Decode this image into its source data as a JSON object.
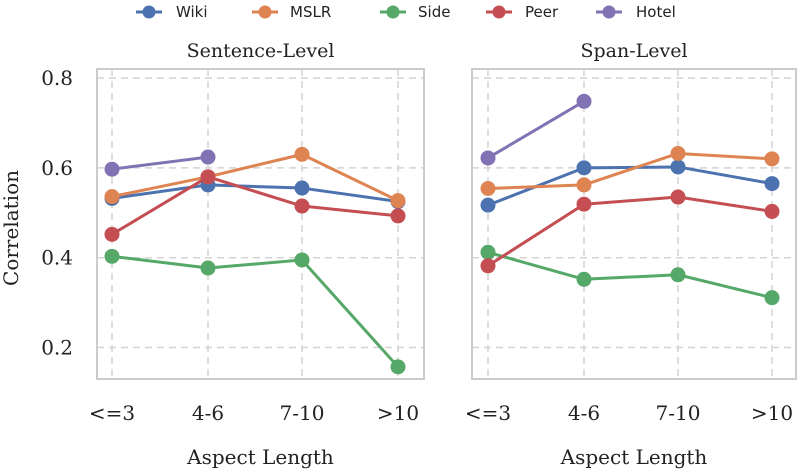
{
  "chart_data": {
    "type": "line",
    "legend": {
      "placement": "top-center",
      "entries": [
        {
          "name": "Wiki",
          "color": "#4c72b0"
        },
        {
          "name": "MSLR",
          "color": "#dd8452"
        },
        {
          "name": "Side",
          "color": "#55a868"
        },
        {
          "name": "Peer",
          "color": "#c44e52"
        },
        {
          "name": "Hotel",
          "color": "#8172b3"
        }
      ]
    },
    "categories": [
      "<=3",
      "4-6",
      "7-10",
      ">10"
    ],
    "xlabel": "Aspect Length",
    "ylabel": "Correlation",
    "ylim": [
      0.13,
      0.82
    ],
    "yticks": [
      "0.2",
      "0.4",
      "0.6",
      "0.8"
    ],
    "grid": true,
    "panels": [
      {
        "title": "Sentence-Level",
        "series": [
          {
            "name": "Wiki",
            "color": "#4c72b0",
            "values": [
              0.532,
              0.562,
              0.555,
              0.525
            ]
          },
          {
            "name": "MSLR",
            "color": "#dd8452",
            "values": [
              0.536,
              0.58,
              0.63,
              0.527
            ]
          },
          {
            "name": "Side",
            "color": "#55a868",
            "values": [
              0.403,
              0.377,
              0.395,
              0.157
            ]
          },
          {
            "name": "Peer",
            "color": "#c44e52",
            "values": [
              0.452,
              0.58,
              0.515,
              0.493
            ]
          },
          {
            "name": "Hotel",
            "color": "#8172b3",
            "values": [
              0.597,
              0.624,
              null,
              null
            ]
          }
        ]
      },
      {
        "title": "Span-Level",
        "series": [
          {
            "name": "Wiki",
            "color": "#4c72b0",
            "values": [
              0.517,
              0.6,
              0.602,
              0.565
            ]
          },
          {
            "name": "MSLR",
            "color": "#dd8452",
            "values": [
              0.554,
              0.562,
              0.632,
              0.62
            ]
          },
          {
            "name": "Side",
            "color": "#55a868",
            "values": [
              0.412,
              0.352,
              0.362,
              0.311
            ]
          },
          {
            "name": "Peer",
            "color": "#c44e52",
            "values": [
              0.382,
              0.519,
              0.535,
              0.503
            ]
          },
          {
            "name": "Hotel",
            "color": "#8172b3",
            "values": [
              0.622,
              0.748,
              null,
              null
            ]
          }
        ]
      }
    ]
  }
}
